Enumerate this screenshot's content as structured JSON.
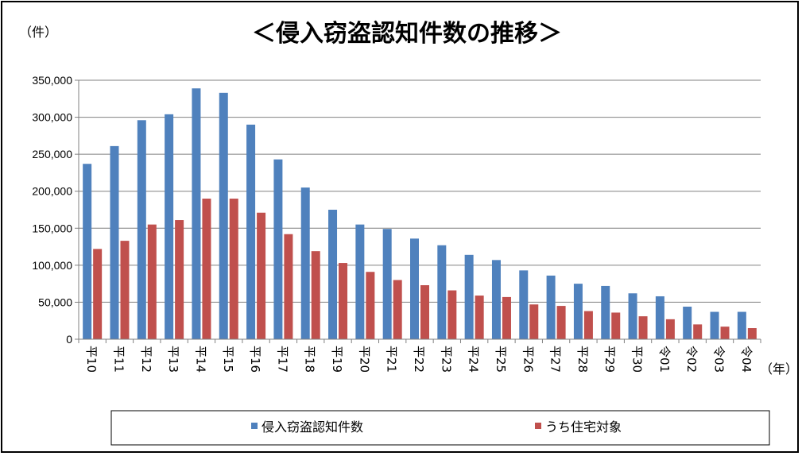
{
  "colors": {
    "series_1": "#4f81bd",
    "series_2": "#c0504d",
    "grid": "#808080",
    "axis": "#808080"
  },
  "chart_data": {
    "type": "bar",
    "title": "＜侵入窃盗認知件数の推移＞",
    "ylabel": "（件）",
    "xlabel": "（年）",
    "ylim": [
      0,
      350000
    ],
    "yticks": [
      0,
      50000,
      100000,
      150000,
      200000,
      250000,
      300000,
      350000
    ],
    "ytick_labels": [
      "0",
      "50,000",
      "100,000",
      "150,000",
      "200,000",
      "250,000",
      "300,000",
      "350,000"
    ],
    "grid": true,
    "legend": "bottom",
    "categories": [
      "平10",
      "平11",
      "平12",
      "平13",
      "平14",
      "平15",
      "平16",
      "平17",
      "平18",
      "平19",
      "平20",
      "平21",
      "平22",
      "平23",
      "平24",
      "平25",
      "平26",
      "平27",
      "平28",
      "平29",
      "平30",
      "令01",
      "令02",
      "令03",
      "令04"
    ],
    "series": [
      {
        "name": "侵入窃盗認知件数",
        "color": "#4f81bd",
        "values": [
          237000,
          261000,
          296000,
          304000,
          339000,
          333000,
          290000,
          243000,
          205000,
          175000,
          155000,
          149000,
          136000,
          127000,
          114000,
          107000,
          93000,
          86000,
          75000,
          72000,
          62000,
          58000,
          44000,
          37000,
          37000
        ]
      },
      {
        "name": "うち住宅対象",
        "color": "#c0504d",
        "values": [
          122000,
          133000,
          155000,
          161000,
          190000,
          190000,
          171000,
          142000,
          119000,
          103000,
          91000,
          80000,
          73000,
          66000,
          59000,
          57000,
          47000,
          45000,
          38000,
          36000,
          31000,
          27000,
          20000,
          17000,
          15000
        ]
      }
    ]
  }
}
